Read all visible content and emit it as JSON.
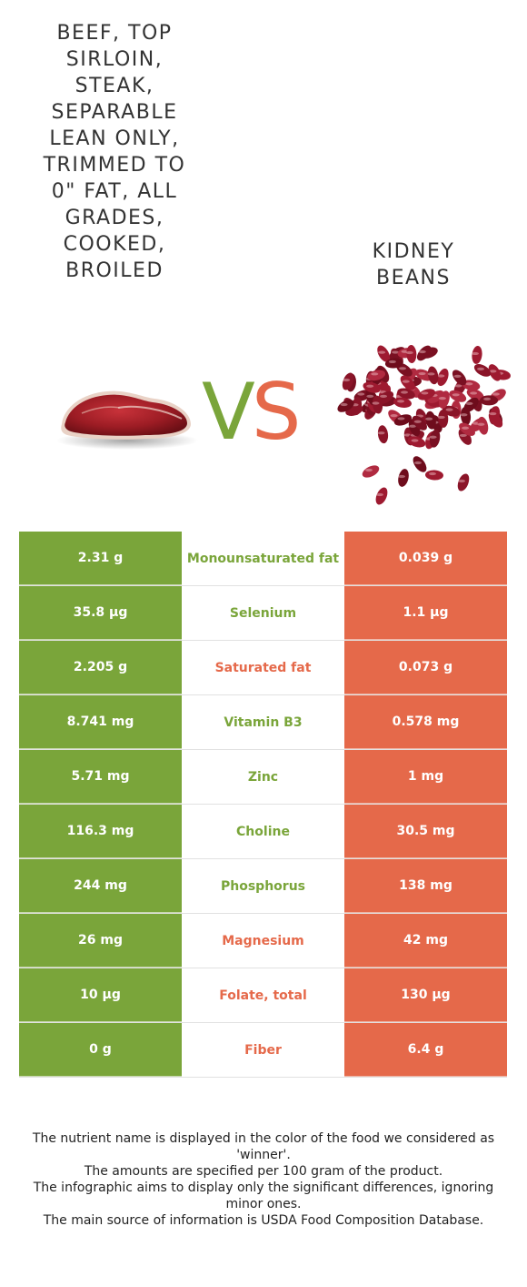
{
  "left_food": {
    "name": "BEEF, TOP SIRLOIN, STEAK, SEPARABLE LEAN ONLY, TRIMMED TO 0\" FAT, ALL GRADES, COOKED, BROILED",
    "name_lines": "BEEF, TOP\nSIRLOIN,\nSTEAK,\nSEPARABLE\nLEAN ONLY,\nTRIMMED TO\n0\" FAT, ALL\nGRADES,\nCOOKED,\nBROILED",
    "color": "#7aa53a",
    "icon": "beef-steak-icon"
  },
  "right_food": {
    "name_lines": "KIDNEY\nBEANS",
    "color": "#e5694a",
    "icon": "kidney-beans-icon"
  },
  "vs": {
    "v": "V",
    "s": "S"
  },
  "rows": [
    {
      "left": "2.31 g",
      "nutrient": "Monounsaturated fat",
      "right": "0.039 g",
      "winner": "left"
    },
    {
      "left": "35.8 µg",
      "nutrient": "Selenium",
      "right": "1.1 µg",
      "winner": "left"
    },
    {
      "left": "2.205 g",
      "nutrient": "Saturated fat",
      "right": "0.073 g",
      "winner": "right"
    },
    {
      "left": "8.741 mg",
      "nutrient": "Vitamin B3",
      "right": "0.578 mg",
      "winner": "left"
    },
    {
      "left": "5.71 mg",
      "nutrient": "Zinc",
      "right": "1 mg",
      "winner": "left"
    },
    {
      "left": "116.3 mg",
      "nutrient": "Choline",
      "right": "30.5 mg",
      "winner": "left"
    },
    {
      "left": "244 mg",
      "nutrient": "Phosphorus",
      "right": "138 mg",
      "winner": "left"
    },
    {
      "left": "26 mg",
      "nutrient": "Magnesium",
      "right": "42 mg",
      "winner": "right"
    },
    {
      "left": "10 µg",
      "nutrient": "Folate, total",
      "right": "130 µg",
      "winner": "right"
    },
    {
      "left": "0 g",
      "nutrient": "Fiber",
      "right": "6.4 g",
      "winner": "right"
    }
  ],
  "footer": [
    "The nutrient name is displayed in the color of the food we considered as 'winner'.",
    "The amounts are specified per 100 gram of the product.",
    "The infographic aims to display only the significant differences, ignoring minor ones.",
    "The main source of information is USDA Food Composition Database."
  ]
}
